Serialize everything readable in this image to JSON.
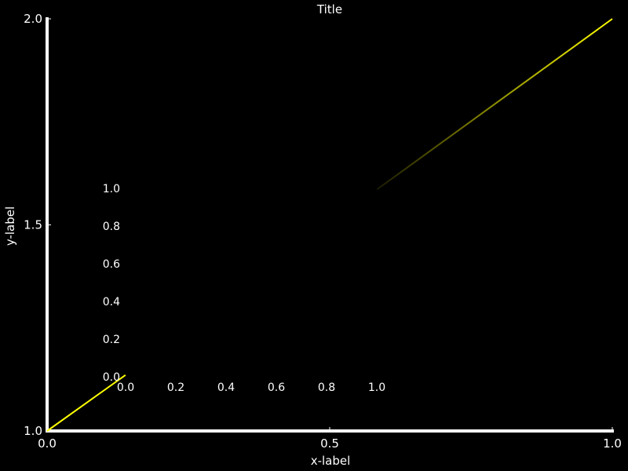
{
  "chart_data": {
    "type": "line",
    "title": "Title",
    "xlabel": "x-label",
    "ylabel": "y-label",
    "xlim": [
      0.0,
      1.0
    ],
    "ylim": [
      1.0,
      2.0
    ],
    "xticks": [
      "0.0",
      "0.5",
      "1.0"
    ],
    "yticks": [
      "1.0",
      "1.5",
      "2.0"
    ],
    "grid": false,
    "series": [
      {
        "x": [
          0.0,
          0.1386
        ],
        "y": [
          1.0,
          1.1357
        ],
        "color": "#ffff00"
      },
      {
        "x": [
          0.5839,
          1.0
        ],
        "y": [
          1.5862,
          2.0
        ],
        "color": "#ffff00",
        "gradient_to": "#1a1a00"
      }
    ],
    "inset": {
      "xticks": [
        "0.0",
        "0.2",
        "0.4",
        "0.6",
        "0.8",
        "1.0"
      ],
      "yticks": [
        "0.0",
        "0.2",
        "0.4",
        "0.6",
        "0.8",
        "1.0"
      ]
    }
  }
}
